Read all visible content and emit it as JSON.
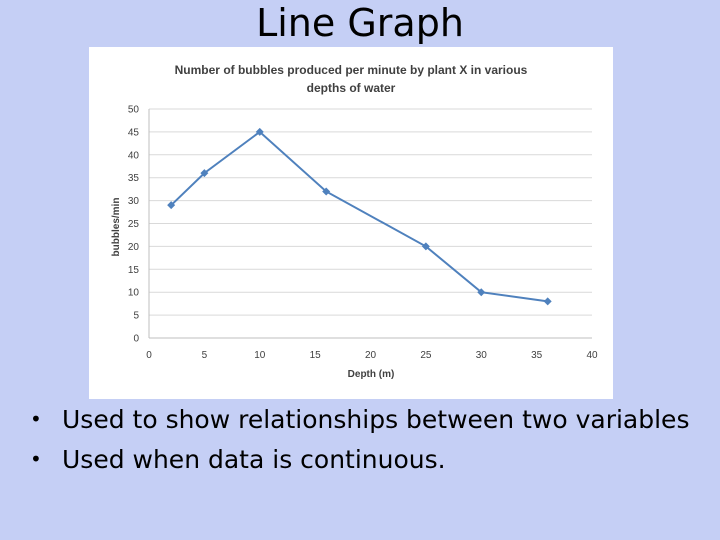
{
  "slide": {
    "title": "Line Graph",
    "bullets": [
      "Used to show relationships between two variables",
      "Used when data is continuous."
    ]
  },
  "colors": {
    "background": "#c5cff5",
    "series": "#4f81bd",
    "grid": "#d9d9d9"
  },
  "chart_data": {
    "type": "line",
    "title_lines": [
      "Number of bubbles produced per minute by plant X in various",
      "depths of water"
    ],
    "xlabel": "Depth (m)",
    "ylabel": "bubbles/min",
    "xlim": [
      0,
      40
    ],
    "ylim": [
      0,
      50
    ],
    "x_ticks": [
      0,
      5,
      10,
      15,
      20,
      25,
      30,
      35,
      40
    ],
    "y_ticks": [
      0,
      5,
      10,
      15,
      20,
      25,
      30,
      35,
      40,
      45,
      50
    ],
    "grid": "horizontal",
    "legend": "none",
    "marker": "diamond",
    "series": [
      {
        "x": [
          2,
          5,
          10,
          16,
          25,
          30,
          36
        ],
        "y": [
          29,
          36,
          45,
          32,
          20,
          10,
          8
        ]
      }
    ]
  }
}
